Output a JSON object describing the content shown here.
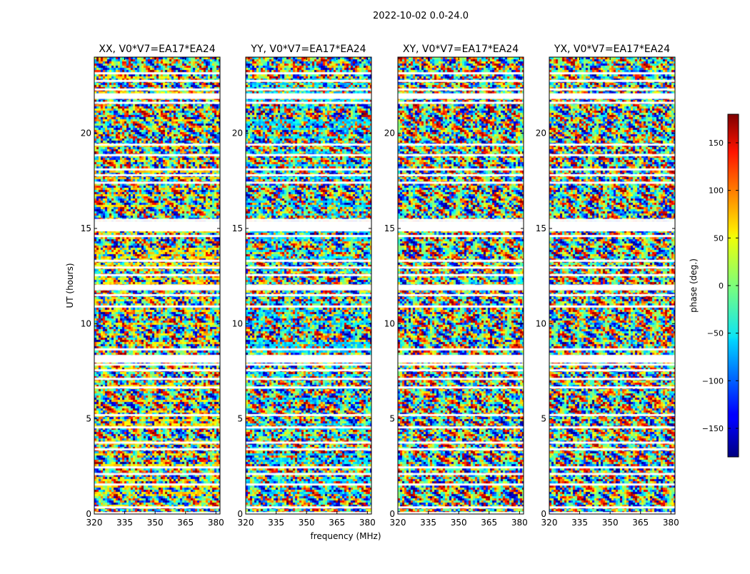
{
  "page_title": "2022-10-02 0.0-24.0",
  "chart_data": {
    "type": "heatmap",
    "title": "2022-10-02 0.0-24.0",
    "xlabel": "frequency (MHz)",
    "ylabel": "UT (hours)",
    "xlim": [
      320,
      382
    ],
    "ylim": [
      0,
      24
    ],
    "xticks": [
      320,
      335,
      350,
      365,
      380
    ],
    "yticks": [
      0,
      5,
      10,
      15,
      20
    ],
    "panels": [
      {
        "name": "xx",
        "title": "XX, V0*V7=EA17*EA24",
        "bias_hue": 55
      },
      {
        "name": "yy",
        "title": "YY, V0*V7=EA17*EA24",
        "bias_hue": -60
      },
      {
        "name": "xy",
        "title": "XY, V0*V7=EA17*EA24",
        "bias_hue": null
      },
      {
        "name": "yx",
        "title": "YX, V0*V7=EA17*EA24",
        "bias_hue": null
      }
    ],
    "flagged_rows_hours": [
      0.05,
      0.35,
      1.55,
      2.1,
      2.45,
      3.4,
      3.75,
      4.55,
      5.2,
      6.65,
      7.1,
      7.55,
      7.85,
      8.1,
      8.3,
      8.65,
      10.9,
      11.5,
      11.9,
      12.55,
      12.95,
      13.3,
      14.6,
      15.0,
      15.25,
      15.45,
      17.4,
      17.8,
      18.1,
      18.85,
      19.4,
      21.6,
      21.95,
      22.3,
      22.75,
      23.15
    ],
    "flagged_rows_major_hours": [
      8.1,
      11.9,
      15.0,
      15.25,
      21.95
    ],
    "colorbar": {
      "label": "phase (deg.)",
      "range": [
        -180,
        180
      ],
      "ticks": [
        150,
        100,
        50,
        0,
        -50,
        -100,
        -150
      ],
      "tick_labels": [
        "150",
        "100",
        "50",
        "0",
        "−50",
        "−100",
        "−150"
      ],
      "colormap": "jet"
    }
  }
}
